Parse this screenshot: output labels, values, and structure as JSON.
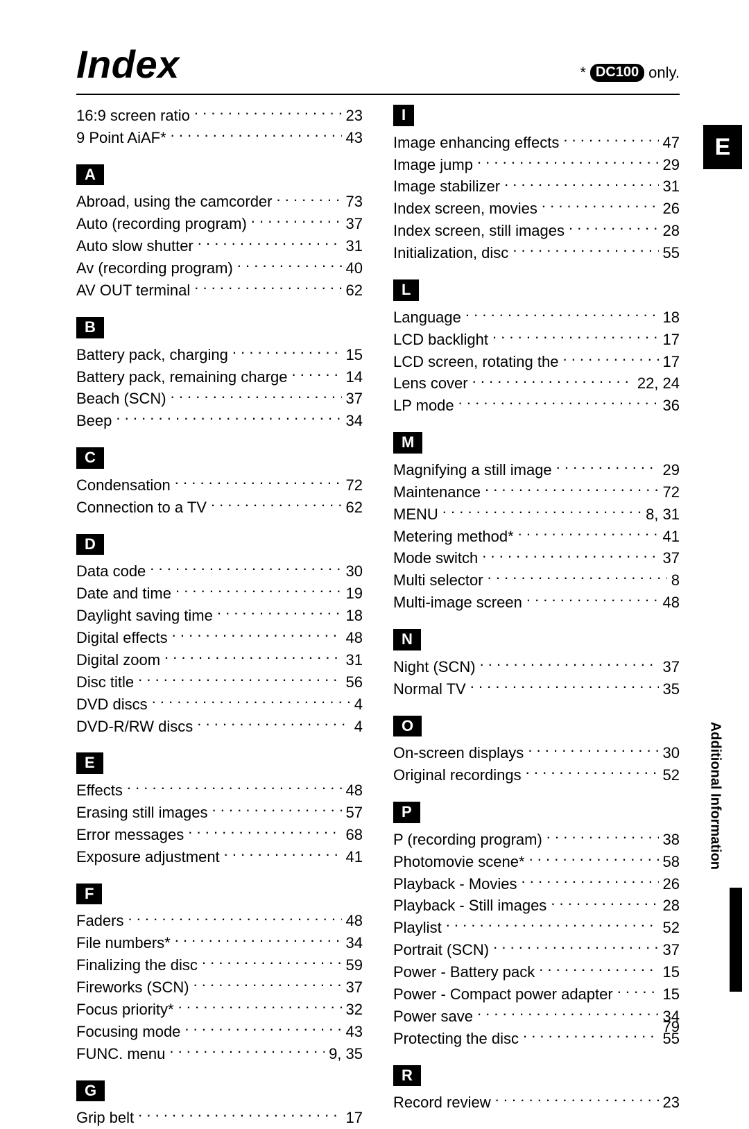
{
  "title": "Index",
  "header_note": {
    "star": "*",
    "pill": "DC100",
    "suffix": "only."
  },
  "side_tab": "E",
  "side_label": "Additional Information",
  "page_number": "79",
  "left_top_entries": [
    {
      "label": "16:9 screen ratio",
      "page": "23"
    },
    {
      "label": "9 Point AiAF*",
      "page": "43"
    }
  ],
  "left_sections": [
    {
      "letter": "A",
      "entries": [
        {
          "label": "Abroad, using the camcorder",
          "page": "73"
        },
        {
          "label": "Auto (recording program)",
          "page": "37"
        },
        {
          "label": "Auto slow shutter",
          "page": "31"
        },
        {
          "label": "Av (recording program)",
          "page": "40"
        },
        {
          "label": "AV OUT terminal",
          "page": "62"
        }
      ]
    },
    {
      "letter": "B",
      "entries": [
        {
          "label": "Battery pack, charging",
          "page": "15"
        },
        {
          "label": "Battery pack, remaining charge",
          "page": "14"
        },
        {
          "label": "Beach (SCN)",
          "page": "37"
        },
        {
          "label": "Beep",
          "page": "34"
        }
      ]
    },
    {
      "letter": "C",
      "entries": [
        {
          "label": "Condensation",
          "page": "72"
        },
        {
          "label": "Connection to a TV",
          "page": "62"
        }
      ]
    },
    {
      "letter": "D",
      "entries": [
        {
          "label": "Data code",
          "page": "30"
        },
        {
          "label": "Date and time",
          "page": "19"
        },
        {
          "label": "Daylight saving time",
          "page": "18"
        },
        {
          "label": "Digital effects",
          "page": "48"
        },
        {
          "label": "Digital zoom",
          "page": "31"
        },
        {
          "label": "Disc title",
          "page": "56"
        },
        {
          "label": "DVD discs",
          "page": "4"
        },
        {
          "label": "DVD-R/RW discs",
          "page": "4"
        }
      ]
    },
    {
      "letter": "E",
      "entries": [
        {
          "label": "Effects",
          "page": "48"
        },
        {
          "label": "Erasing still images",
          "page": "57"
        },
        {
          "label": "Error messages",
          "page": "68"
        },
        {
          "label": "Exposure adjustment",
          "page": "41"
        }
      ]
    },
    {
      "letter": "F",
      "entries": [
        {
          "label": "Faders",
          "page": "48"
        },
        {
          "label": "File numbers*",
          "page": "34"
        },
        {
          "label": "Finalizing the disc",
          "page": "59"
        },
        {
          "label": "Fireworks (SCN)",
          "page": "37"
        },
        {
          "label": "Focus priority*",
          "page": "32"
        },
        {
          "label": "Focusing mode",
          "page": "43"
        },
        {
          "label": "FUNC. menu",
          "page": "9, 35"
        }
      ]
    },
    {
      "letter": "G",
      "entries": [
        {
          "label": "Grip belt",
          "page": "17"
        }
      ]
    }
  ],
  "right_sections": [
    {
      "letter": "I",
      "entries": [
        {
          "label": "Image enhancing effects",
          "page": "47"
        },
        {
          "label": "Image jump",
          "page": "29"
        },
        {
          "label": "Image stabilizer",
          "page": "31"
        },
        {
          "label": "Index screen, movies",
          "page": "26"
        },
        {
          "label": "Index screen, still images",
          "page": "28"
        },
        {
          "label": "Initialization, disc",
          "page": "55"
        }
      ]
    },
    {
      "letter": "L",
      "entries": [
        {
          "label": "Language",
          "page": "18"
        },
        {
          "label": "LCD backlight",
          "page": "17"
        },
        {
          "label": "LCD screen, rotating the",
          "page": "17"
        },
        {
          "label": "Lens cover",
          "page": "22, 24"
        },
        {
          "label": "LP mode",
          "page": "36"
        }
      ]
    },
    {
      "letter": "M",
      "entries": [
        {
          "label": "Magnifying a still image",
          "page": "29"
        },
        {
          "label": "Maintenance",
          "page": "72"
        },
        {
          "label": "MENU",
          "page": "8, 31"
        },
        {
          "label": "Metering method*",
          "page": "41"
        },
        {
          "label": "Mode switch",
          "page": "37"
        },
        {
          "label": "Multi selector",
          "page": "8"
        },
        {
          "label": "Multi-image screen",
          "page": "48"
        }
      ]
    },
    {
      "letter": "N",
      "entries": [
        {
          "label": "Night (SCN)",
          "page": "37"
        },
        {
          "label": "Normal TV",
          "page": "35"
        }
      ]
    },
    {
      "letter": "O",
      "entries": [
        {
          "label": "On-screen displays",
          "page": "30"
        },
        {
          "label": "Original recordings",
          "page": "52"
        }
      ]
    },
    {
      "letter": "P",
      "entries": [
        {
          "label": "P (recording program)",
          "page": "38"
        },
        {
          "label": "Photomovie scene*",
          "page": "58"
        },
        {
          "label": "Playback - Movies",
          "page": "26"
        },
        {
          "label": "Playback - Still images",
          "page": "28"
        },
        {
          "label": "Playlist",
          "page": "52"
        },
        {
          "label": "Portrait (SCN)",
          "page": "37"
        },
        {
          "label": "Power - Battery pack",
          "page": "15"
        },
        {
          "label": "Power - Compact power adapter",
          "page": "15"
        },
        {
          "label": "Power save",
          "page": "34"
        },
        {
          "label": "Protecting the disc",
          "page": "55"
        }
      ]
    },
    {
      "letter": "R",
      "entries": [
        {
          "label": "Record review",
          "page": "23"
        }
      ]
    }
  ]
}
